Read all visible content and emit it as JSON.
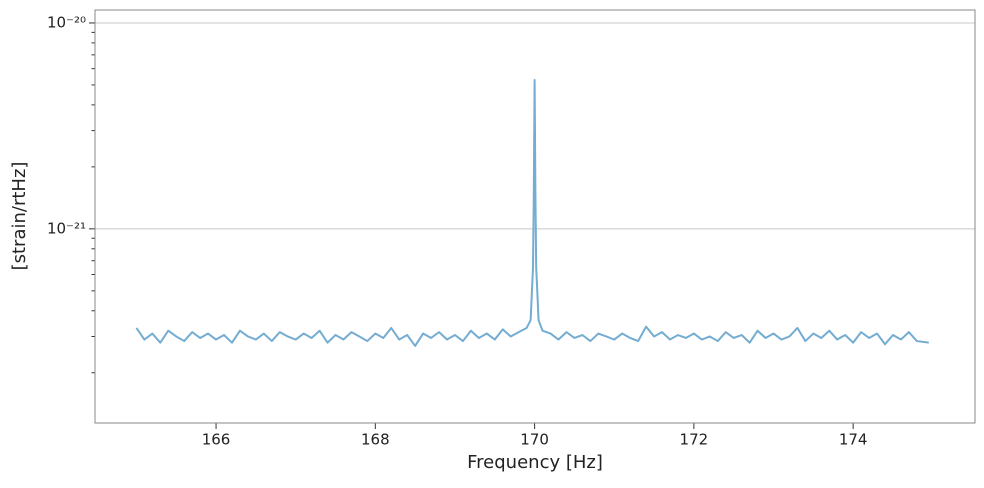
{
  "chart_data": {
    "type": "line",
    "xlabel": "Frequency [Hz]",
    "ylabel": "[strain/rtHz]",
    "x": [
      165.0,
      165.1,
      165.2,
      165.3,
      165.4,
      165.5,
      165.6,
      165.7,
      165.8,
      165.9,
      166.0,
      166.1,
      166.2,
      166.3,
      166.4,
      166.5,
      166.6,
      166.7,
      166.8,
      166.9,
      167.0,
      167.1,
      167.2,
      167.3,
      167.4,
      167.5,
      167.6,
      167.7,
      167.8,
      167.9,
      168.0,
      168.1,
      168.2,
      168.3,
      168.4,
      168.5,
      168.6,
      168.7,
      168.8,
      168.9,
      169.0,
      169.1,
      169.2,
      169.3,
      169.4,
      169.5,
      169.6,
      169.7,
      169.8,
      169.9,
      169.95,
      169.98,
      169.99,
      170.0,
      170.01,
      170.02,
      170.05,
      170.1,
      170.2,
      170.3,
      170.4,
      170.5,
      170.6,
      170.7,
      170.8,
      170.9,
      171.0,
      171.1,
      171.2,
      171.3,
      171.4,
      171.5,
      171.6,
      171.7,
      171.8,
      171.9,
      172.0,
      172.1,
      172.2,
      172.3,
      172.4,
      172.5,
      172.6,
      172.7,
      172.8,
      172.9,
      173.0,
      173.1,
      173.2,
      173.3,
      173.4,
      173.5,
      173.6,
      173.7,
      173.8,
      173.9,
      174.0,
      174.1,
      174.2,
      174.3,
      174.4,
      174.5,
      174.6,
      174.7,
      174.8,
      174.95
    ],
    "series": [
      {
        "color": "#74acd2",
        "values": [
          3.3e-22,
          2.9e-22,
          3.1e-22,
          2.8e-22,
          3.2e-22,
          3e-22,
          2.85e-22,
          3.15e-22,
          2.95e-22,
          3.1e-22,
          2.9e-22,
          3.05e-22,
          2.8e-22,
          3.2e-22,
          3e-22,
          2.9e-22,
          3.1e-22,
          2.85e-22,
          3.15e-22,
          3e-22,
          2.9e-22,
          3.1e-22,
          2.95e-22,
          3.2e-22,
          2.8e-22,
          3.05e-22,
          2.9e-22,
          3.15e-22,
          3e-22,
          2.85e-22,
          3.1e-22,
          2.95e-22,
          3.3e-22,
          2.9e-22,
          3.05e-22,
          2.7e-22,
          3.1e-22,
          2.95e-22,
          3.15e-22,
          2.9e-22,
          3.05e-22,
          2.85e-22,
          3.2e-22,
          2.95e-22,
          3.1e-22,
          2.9e-22,
          3.25e-22,
          3e-22,
          3.15e-22,
          3.3e-22,
          3.6e-22,
          6.5e-22,
          1.5e-21,
          5.28e-21,
          1.5e-21,
          6.5e-22,
          3.6e-22,
          3.2e-22,
          3.1e-22,
          2.9e-22,
          3.15e-22,
          2.95e-22,
          3.05e-22,
          2.85e-22,
          3.1e-22,
          3e-22,
          2.9e-22,
          3.1e-22,
          2.95e-22,
          2.85e-22,
          3.35e-22,
          3e-22,
          3.15e-22,
          2.9e-22,
          3.05e-22,
          2.95e-22,
          3.1e-22,
          2.9e-22,
          3e-22,
          2.85e-22,
          3.15e-22,
          2.95e-22,
          3.05e-22,
          2.8e-22,
          3.2e-22,
          2.95e-22,
          3.1e-22,
          2.9e-22,
          3e-22,
          3.3e-22,
          2.85e-22,
          3.1e-22,
          2.95e-22,
          3.2e-22,
          2.9e-22,
          3.05e-22,
          2.8e-22,
          3.15e-22,
          2.95e-22,
          3.1e-22,
          2.75e-22,
          3.05e-22,
          2.9e-22,
          3.15e-22,
          2.85e-22,
          2.8e-22
        ]
      }
    ],
    "xlim": [
      164.48,
      175.53
    ],
    "xticks": [
      166,
      168,
      170,
      172,
      174
    ],
    "ylim": [
      1.14e-22,
      1.156e-20
    ],
    "yscale": "log",
    "yticks": [
      {
        "value": 1e-21,
        "label": "10⁻²¹"
      },
      {
        "value": 1e-20,
        "label": "10⁻²⁰"
      }
    ],
    "yminorticks": [
      2e-22,
      3e-22,
      4e-22,
      5e-22,
      6e-22,
      7e-22,
      8e-22,
      9e-22,
      2e-21,
      3e-21,
      4e-21,
      5e-21,
      6e-21,
      7e-21,
      8e-21,
      9e-21
    ],
    "grid": true
  }
}
